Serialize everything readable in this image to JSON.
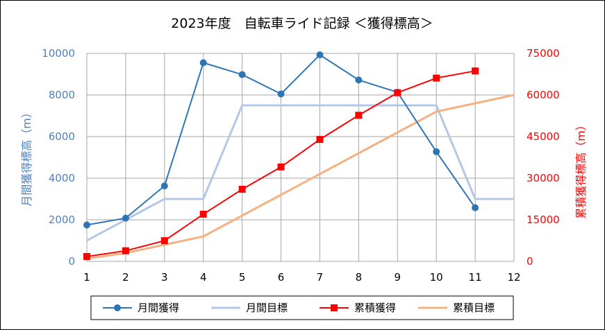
{
  "chart_data": {
    "type": "line",
    "title": "2023年度　自転車ライド記録 ＜獲得標高＞",
    "x": [
      1,
      2,
      3,
      4,
      5,
      6,
      7,
      8,
      9,
      10,
      11,
      12
    ],
    "xlim": [
      1,
      12
    ],
    "ylabel_left": "月間獲得標高（m）",
    "ylabel_right": "累積獲得標高（m）",
    "ylim_left": [
      0,
      10000
    ],
    "ylim_right": [
      0,
      75000
    ],
    "yticks_left": [
      0,
      2000,
      4000,
      6000,
      8000,
      10000
    ],
    "yticks_right": [
      0,
      15000,
      30000,
      45000,
      60000,
      75000
    ],
    "grid": true,
    "legend_position": "bottom",
    "series": [
      {
        "name": "月間獲得",
        "axis": "left",
        "color": "#2e75b6",
        "marker": "circle",
        "values": [
          1750,
          2080,
          3630,
          9550,
          8980,
          8050,
          9930,
          8720,
          8130,
          5270,
          2580,
          null
        ]
      },
      {
        "name": "月間目標",
        "axis": "left",
        "color": "#b4c7e7",
        "marker": "none",
        "values": [
          1000,
          2000,
          3000,
          3000,
          7500,
          7500,
          7500,
          7500,
          7500,
          7500,
          3000,
          3000
        ]
      },
      {
        "name": "累積獲得",
        "axis": "right",
        "color": "#ff0000",
        "marker": "square",
        "values": [
          1750,
          3830,
          7460,
          17010,
          25990,
          34040,
          43970,
          52690,
          60820,
          66090,
          68670,
          null
        ]
      },
      {
        "name": "累積目標",
        "axis": "right",
        "color": "#f4b183",
        "marker": "none",
        "values": [
          1000,
          3000,
          6000,
          9000,
          16500,
          24000,
          31500,
          39000,
          46500,
          54000,
          57000,
          60000
        ]
      }
    ]
  },
  "colors": {
    "left_axis_text": "#4f81bd",
    "right_axis_text": "#ff0000",
    "grid": "#a6a6a6"
  }
}
